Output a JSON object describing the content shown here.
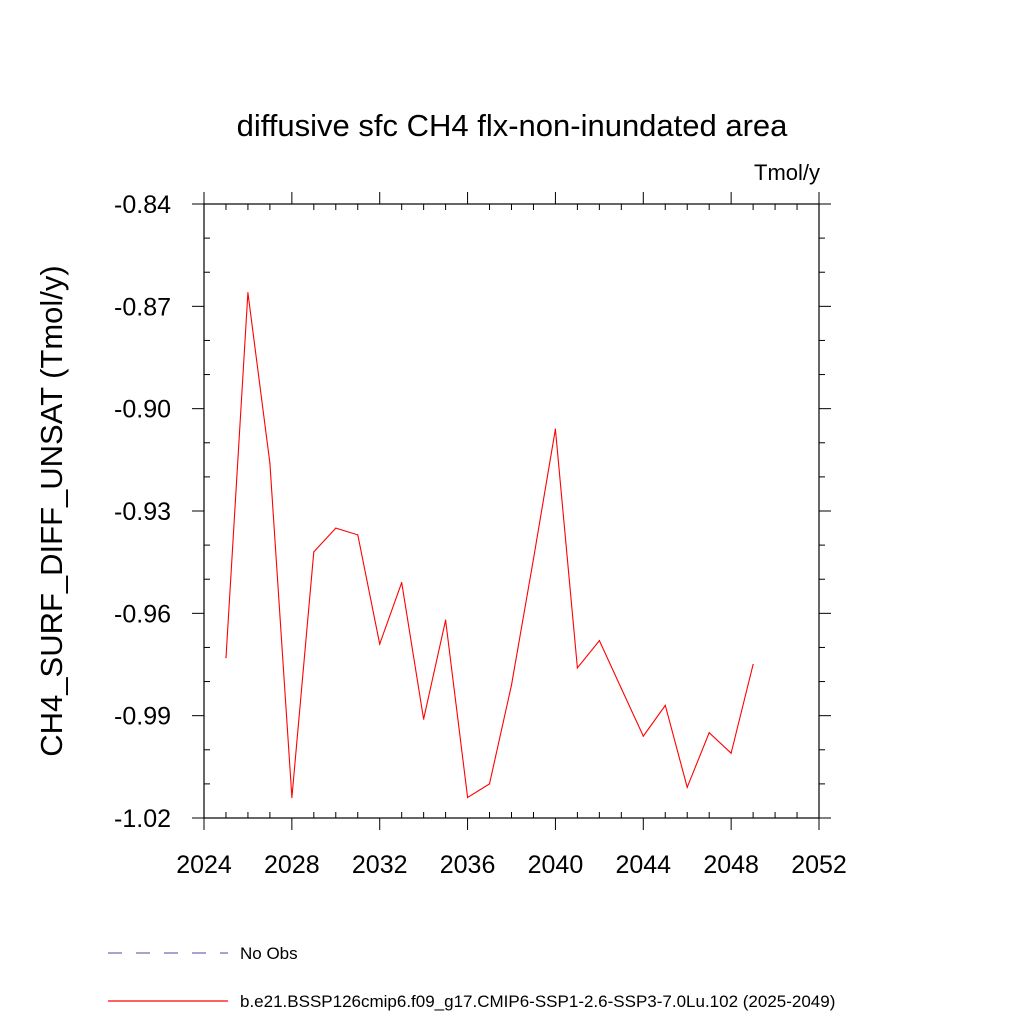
{
  "chart_data": {
    "type": "line",
    "title": "diffusive sfc CH4 flx-non-inundated area",
    "units": "Tmol/y",
    "xlabel": "",
    "ylabel": "CH4_SURF_DIFF_UNSAT  (Tmol/y)",
    "xlim": [
      2024,
      2052
    ],
    "ylim": [
      -1.02,
      -0.84
    ],
    "xticks": [
      2024,
      2028,
      2032,
      2036,
      2040,
      2044,
      2048,
      2052
    ],
    "xtick_labels": [
      "2024",
      "2028",
      "2032",
      "2036",
      "2040",
      "2044",
      "2048",
      "2052"
    ],
    "yticks": [
      -1.02,
      -0.99,
      -0.96,
      -0.93,
      -0.9,
      -0.87,
      -0.84
    ],
    "ytick_labels": [
      "-1.02",
      "-0.99",
      "-0.96",
      "-0.93",
      "-0.90",
      "-0.87",
      "-0.84"
    ],
    "grid": false,
    "legend_position": "bottom-left, below plot",
    "series": [
      {
        "name": "b.e21.BSSP126cmip6.f09_g17.CMIP6-SSP1-2.6-SSP3-7.0Lu.102 (2025-2049)",
        "color": "#ff0000",
        "style": "solid",
        "x": [
          2025,
          2026,
          2027,
          2028,
          2029,
          2030,
          2031,
          2032,
          2033,
          2034,
          2035,
          2036,
          2037,
          2038,
          2039,
          2040,
          2041,
          2042,
          2043,
          2044,
          2045,
          2046,
          2047,
          2048,
          2049
        ],
        "y": [
          -0.973,
          -0.866,
          -0.916,
          -1.014,
          -0.942,
          -0.935,
          -0.937,
          -0.969,
          -0.951,
          -0.991,
          -0.962,
          -1.014,
          -1.01,
          -0.981,
          -0.944,
          -0.906,
          -0.976,
          -0.968,
          -0.982,
          -0.996,
          -0.987,
          -1.011,
          -0.995,
          -1.001,
          -0.975
        ]
      }
    ],
    "legend": [
      {
        "label": "No Obs",
        "color": "#7a68b0",
        "style": "dashed"
      },
      {
        "label": "b.e21.BSSP126cmip6.f09_g17.CMIP6-SSP1-2.6-SSP3-7.0Lu.102 (2025-2049)",
        "color": "#ff0000",
        "style": "solid"
      }
    ]
  }
}
